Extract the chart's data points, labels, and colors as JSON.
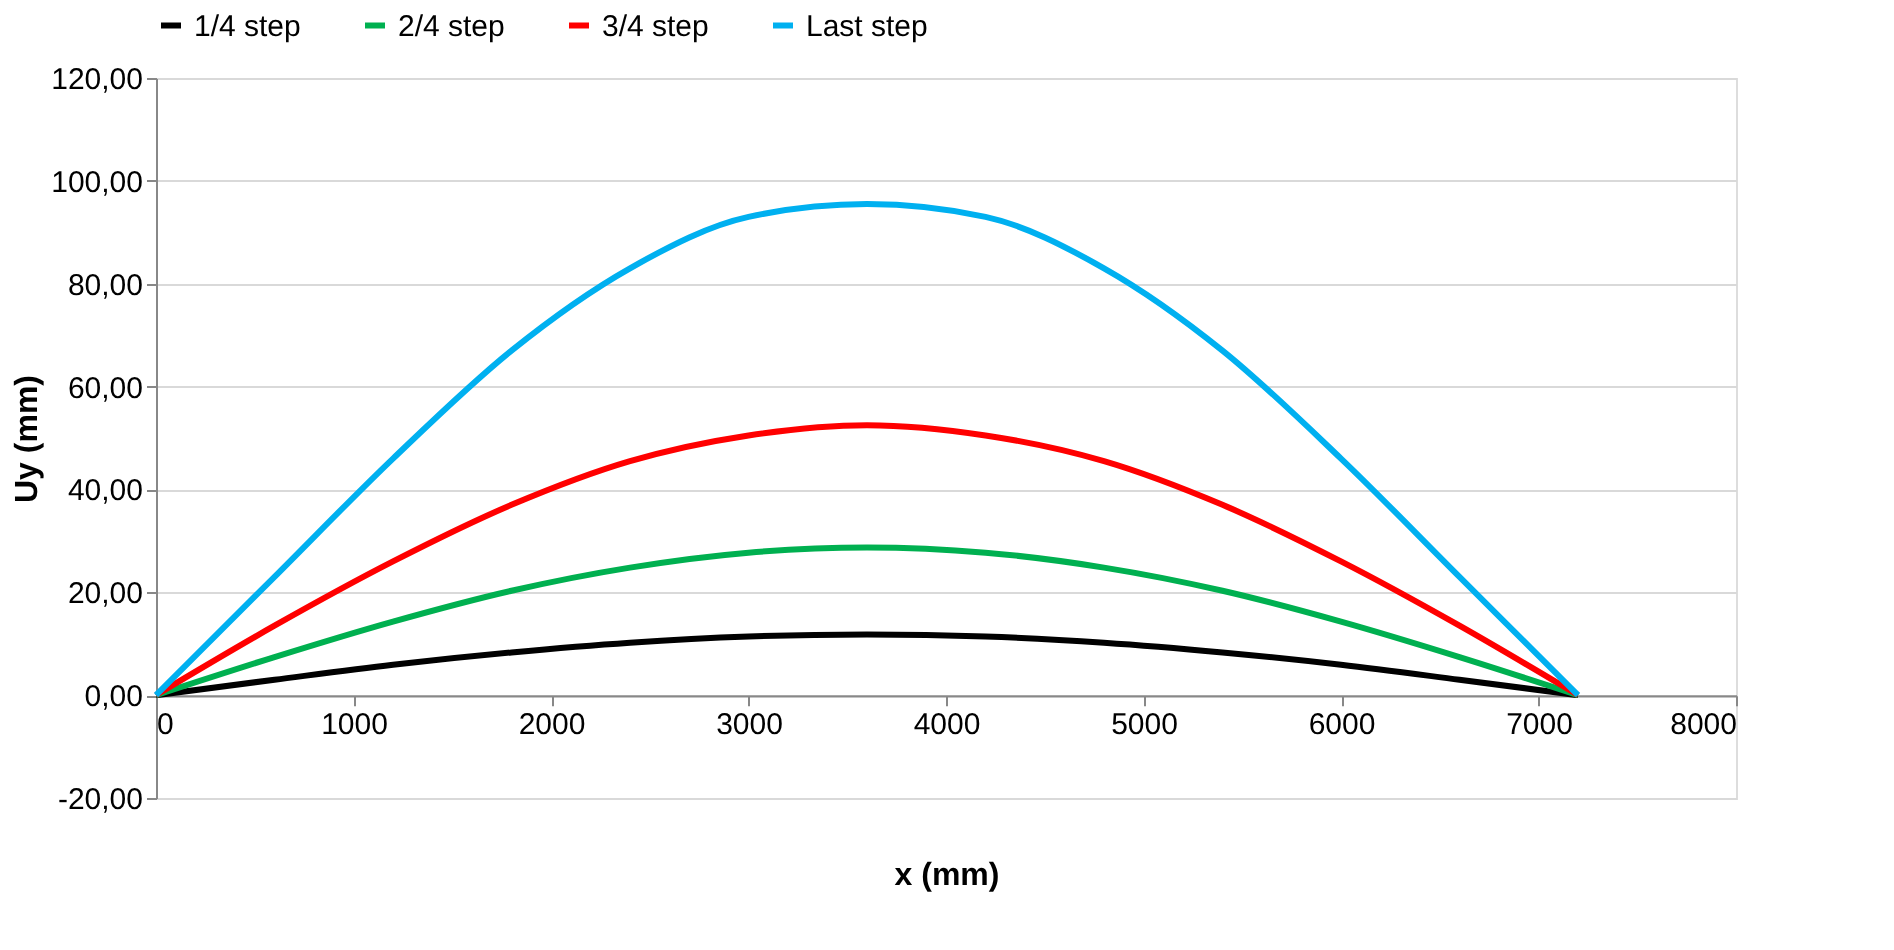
{
  "chart_data": {
    "type": "line",
    "xlabel": "x (mm)",
    "ylabel": "Uy (mm)",
    "x": [
      0,
      600,
      1200,
      1800,
      2400,
      3000,
      3600,
      4200,
      4800,
      5400,
      6000,
      6600,
      7200
    ],
    "series": [
      {
        "name": "1/4 step",
        "color": "#000000",
        "values": [
          0,
          3,
          5.9,
          8.3,
          10.2,
          11.4,
          11.8,
          11.4,
          10.2,
          8.3,
          5.9,
          3,
          0
        ]
      },
      {
        "name": "2/4 step",
        "color": "#00b050",
        "values": [
          0,
          7.4,
          14.3,
          20.3,
          24.8,
          27.7,
          28.7,
          27.7,
          24.8,
          20.3,
          14.3,
          7.4,
          0
        ]
      },
      {
        "name": "3/4 step",
        "color": "#ff0000",
        "values": [
          0,
          13.5,
          26,
          37,
          45.5,
          50.5,
          52.5,
          50.5,
          45.5,
          37,
          26,
          13.5,
          0
        ]
      },
      {
        "name": "Last step",
        "color": "#00b0f0",
        "values": [
          0,
          23,
          46,
          67,
          83,
          93,
          95.5,
          93,
          83,
          67,
          46,
          23,
          0
        ]
      }
    ],
    "xlim": [
      0,
      8000
    ],
    "xticks": [
      0,
      1000,
      2000,
      3000,
      4000,
      5000,
      6000,
      7000,
      8000
    ],
    "ylim": [
      -20,
      120
    ],
    "yticks": [
      {
        "value": -20,
        "label": "-20,00"
      },
      {
        "value": 0,
        "label": "0,00"
      },
      {
        "value": 20,
        "label": "20,00"
      },
      {
        "value": 40,
        "label": "40,00"
      },
      {
        "value": 60,
        "label": "60,00"
      },
      {
        "value": 80,
        "label": "80,00"
      },
      {
        "value": 100,
        "label": "100,00"
      },
      {
        "value": 120,
        "label": "120,00"
      }
    ],
    "grid": "y",
    "legend": "top",
    "marker": "none",
    "line_style": "solid"
  }
}
